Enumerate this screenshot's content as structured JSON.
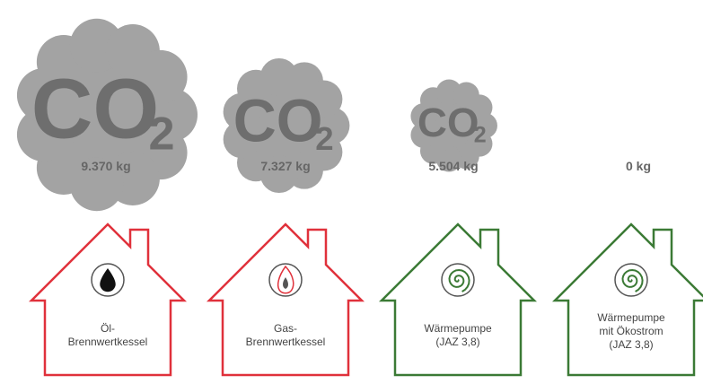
{
  "symbol": {
    "main": "CO",
    "sub": "2"
  },
  "items": [
    {
      "amount": "9.370 kg",
      "label": [
        "Öl-",
        "Brennwertkessel"
      ]
    },
    {
      "amount": "7.327 kg",
      "label": [
        "Gas-",
        "Brennwertkessel"
      ]
    },
    {
      "amount": "5.504 kg",
      "label": [
        "Wärmepumpe",
        "(JAZ 3,8)"
      ]
    },
    {
      "amount": "0 kg",
      "label": [
        "Wärmepumpe",
        "mit Ökostrom",
        "(JAZ 3,8)"
      ]
    }
  ]
}
